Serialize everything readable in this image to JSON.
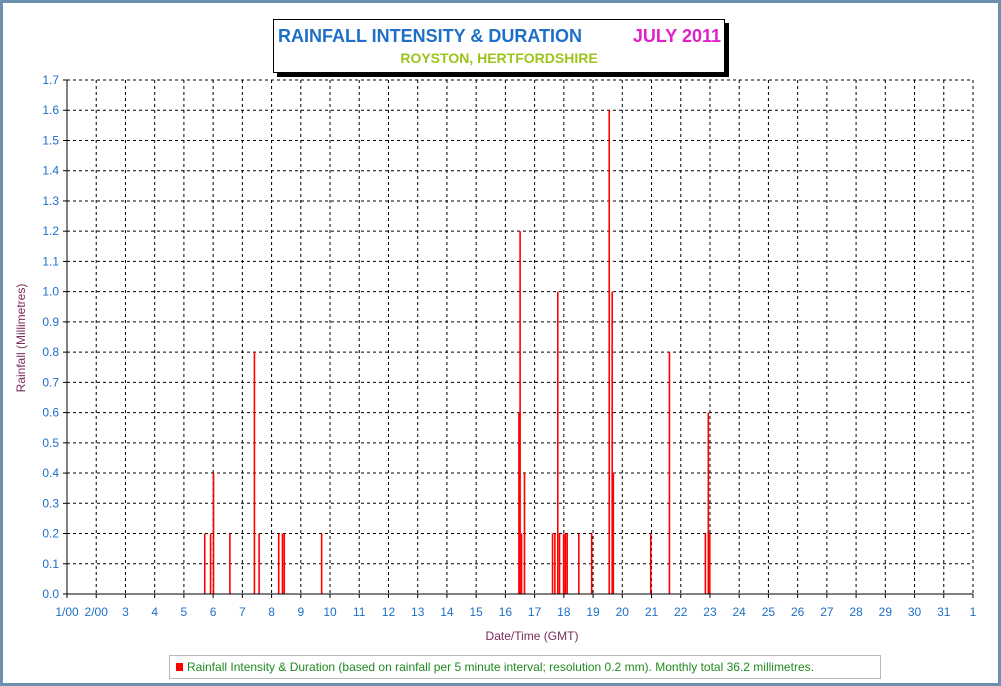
{
  "colors": {
    "bar": "#ff0000",
    "grid": "#000000",
    "axis_tick_text": "#1e6fc8",
    "axis_label_text": "#7a2a5a",
    "title": "#1e6fc8",
    "title_month": "#e020c8",
    "subtitle": "#9cc41a",
    "legend_text": "#1f8a1f",
    "frame_border": "#6d8fb0"
  },
  "chart_data": {
    "type": "bar",
    "title": "RAINFALL INTENSITY & DURATION",
    "title_month": "JULY 2011",
    "subtitle": "ROYSTON, HERTFORDSHIRE",
    "xlabel": "Date/Time (GMT)",
    "ylabel": "Rainfall (Millimetres)",
    "ylim": [
      0,
      1.7
    ],
    "y_ticks": [
      "0.0",
      "0.1",
      "0.2",
      "0.3",
      "0.4",
      "0.5",
      "0.6",
      "0.7",
      "0.8",
      "0.9",
      "1.0",
      "1.1",
      "1.2",
      "1.3",
      "1.4",
      "1.5",
      "1.6",
      "1.7"
    ],
    "xlim": [
      1,
      32
    ],
    "x_tick_labels": [
      "1/00",
      "2/00",
      "3",
      "4",
      "5",
      "6",
      "7",
      "8",
      "9",
      "10",
      "11",
      "12",
      "13",
      "14",
      "15",
      "16",
      "17",
      "18",
      "19",
      "20",
      "21",
      "22",
      "23",
      "24",
      "25",
      "26",
      "27",
      "28",
      "29",
      "30",
      "31",
      "1"
    ],
    "grid": true,
    "legend": {
      "position": "bottom",
      "entries": [
        "Rainfall Intensity & Duration (based on rainfall per 5 minute interval; resolution 0.2 mm). Monthly total 36.2 millimetres."
      ]
    },
    "series": [
      {
        "name": "Rainfall Intensity & Duration (based on rainfall per 5 minute interval; resolution 0.2 mm). Monthly total 36.2 millimetres.",
        "points": [
          {
            "x": 5.72,
            "y": 0.2
          },
          {
            "x": 5.92,
            "y": 0.2
          },
          {
            "x": 6.02,
            "y": 0.4
          },
          {
            "x": 6.58,
            "y": 0.2
          },
          {
            "x": 7.42,
            "y": 0.8
          },
          {
            "x": 7.58,
            "y": 0.2
          },
          {
            "x": 8.25,
            "y": 0.2
          },
          {
            "x": 8.38,
            "y": 0.2
          },
          {
            "x": 8.44,
            "y": 0.2
          },
          {
            "x": 9.72,
            "y": 0.2
          },
          {
            "x": 16.47,
            "y": 0.6
          },
          {
            "x": 16.51,
            "y": 1.2
          },
          {
            "x": 16.56,
            "y": 0.2
          },
          {
            "x": 16.66,
            "y": 0.4
          },
          {
            "x": 17.62,
            "y": 0.2
          },
          {
            "x": 17.7,
            "y": 0.2
          },
          {
            "x": 17.8,
            "y": 1.0
          },
          {
            "x": 17.86,
            "y": 0.2
          },
          {
            "x": 18.0,
            "y": 0.2
          },
          {
            "x": 18.06,
            "y": 0.2
          },
          {
            "x": 18.12,
            "y": 0.2
          },
          {
            "x": 18.52,
            "y": 0.2
          },
          {
            "x": 18.96,
            "y": 0.2
          },
          {
            "x": 19.56,
            "y": 1.6
          },
          {
            "x": 19.66,
            "y": 1.0
          },
          {
            "x": 19.7,
            "y": 0.4
          },
          {
            "x": 20.98,
            "y": 0.2
          },
          {
            "x": 21.62,
            "y": 0.8
          },
          {
            "x": 22.85,
            "y": 0.2
          },
          {
            "x": 22.95,
            "y": 0.6
          },
          {
            "x": 23.0,
            "y": 0.2
          }
        ]
      }
    ]
  }
}
